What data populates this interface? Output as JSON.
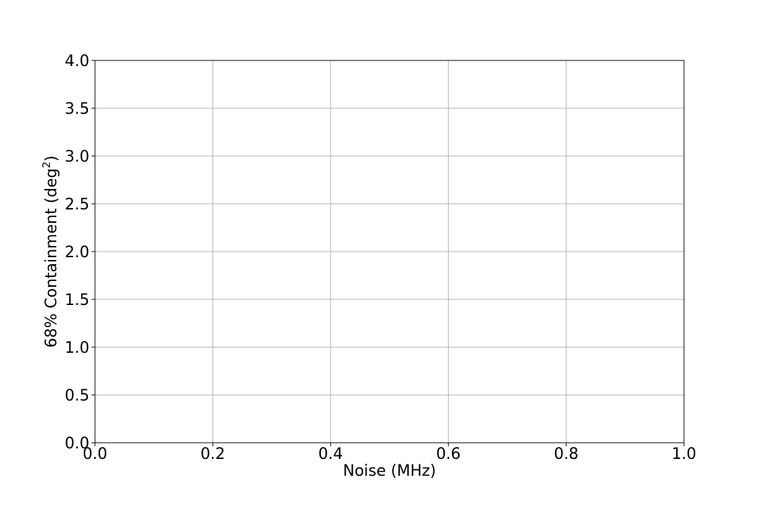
{
  "chart_data": {
    "type": "line",
    "title": "",
    "xlabel": "Noise (MHz)",
    "ylabel": "68% Containment (deg",
    "ylabel_superscript": "2",
    "ylabel_suffix": ")",
    "xlim": [
      0.0,
      1.0
    ],
    "ylim": [
      0.0,
      4.0
    ],
    "xticks": [
      0.0,
      0.2,
      0.4,
      0.6,
      0.8,
      1.0
    ],
    "yticks": [
      0.0,
      0.5,
      1.0,
      1.5,
      2.0,
      2.5,
      3.0,
      3.5,
      4.0
    ],
    "xtick_labels": [
      "0.0",
      "0.2",
      "0.4",
      "0.6",
      "0.8",
      "1.0"
    ],
    "ytick_labels": [
      "0.0",
      "0.5",
      "1.0",
      "1.5",
      "2.0",
      "2.5",
      "3.0",
      "3.5",
      "4.0"
    ],
    "grid": true,
    "series": [],
    "colors": {
      "grid": "#b0b0b0",
      "axes": "#000000",
      "background": "#ffffff"
    }
  }
}
